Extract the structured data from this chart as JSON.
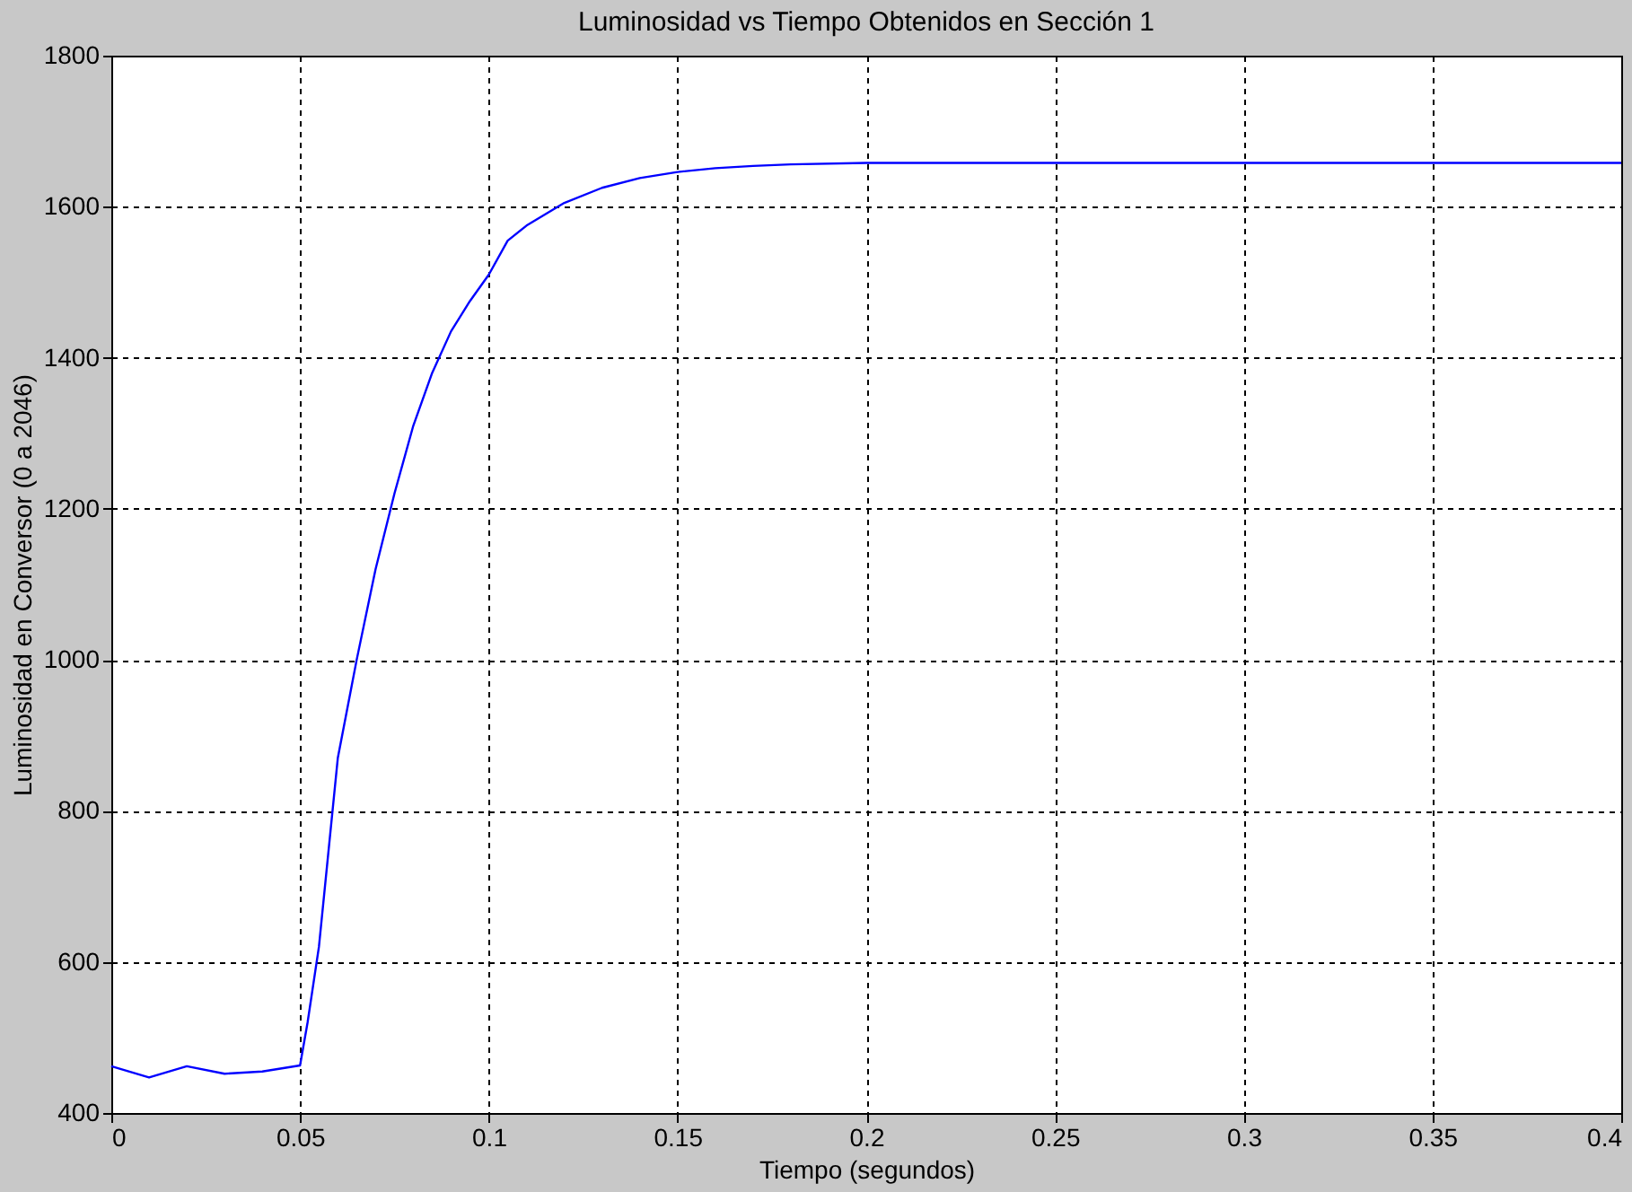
{
  "chart_data": {
    "type": "line",
    "title": "Luminosidad vs Tiempo Obtenidos en Sección 1",
    "xlabel": "Tiempo (segundos)",
    "ylabel": "Luminosidad en Conversor (0 a 2046)",
    "series": [
      {
        "color": "#0000ff",
        "x": [
          0,
          0.01,
          0.02,
          0.03,
          0.04,
          0.05,
          0.052,
          0.055,
          0.06,
          0.065,
          0.07,
          0.075,
          0.08,
          0.085,
          0.09,
          0.095,
          0.1,
          0.105,
          0.11,
          0.12,
          0.13,
          0.14,
          0.15,
          0.16,
          0.17,
          0.18,
          0.2,
          0.25,
          0.3,
          0.35,
          0.4
        ],
        "values": [
          462,
          447,
          462,
          452,
          455,
          463,
          520,
          620,
          870,
          1000,
          1120,
          1220,
          1310,
          1380,
          1435,
          1475,
          1510,
          1555,
          1575,
          1605,
          1625,
          1638,
          1646,
          1651,
          1654,
          1656,
          1658,
          1658,
          1658,
          1658,
          1658
        ]
      }
    ],
    "xlim": [
      0,
      0.4
    ],
    "xticks": [
      0,
      0.05,
      0.1,
      0.15,
      0.2,
      0.25,
      0.3,
      0.35,
      0.4
    ],
    "ylim": [
      400,
      1800
    ],
    "yticks": [
      400,
      600,
      800,
      1000,
      1200,
      1400,
      1600,
      1800
    ],
    "grid": true,
    "line_style": "solid",
    "marker": "none"
  }
}
